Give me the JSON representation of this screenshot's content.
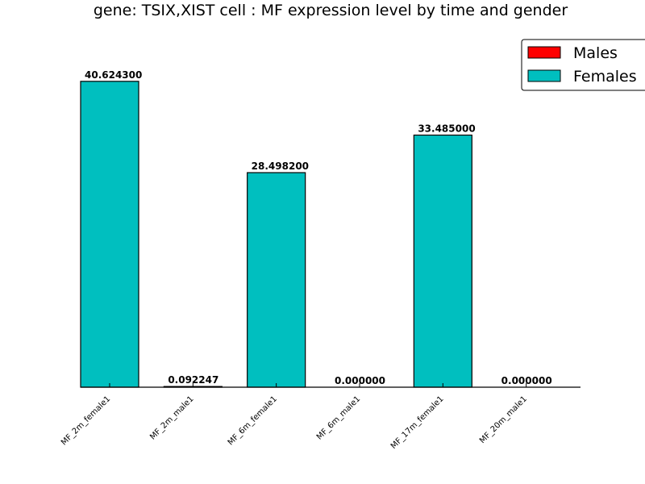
{
  "chart_data": {
    "type": "bar",
    "title": "gene: TSIX,XIST cell : MF expression level by time and gender",
    "xlabel": "",
    "ylabel": "",
    "ylim": [
      0,
      45
    ],
    "grid": false,
    "legend_position": "top-right",
    "categories": [
      "MF_2m_female1",
      "MF_2m_male1",
      "MF_6m_female1",
      "MF_6m_male1",
      "MF_17m_female1",
      "MF_20m_male1"
    ],
    "series": [
      {
        "name": "Males",
        "color": "#ff0000"
      },
      {
        "name": "Females",
        "color": "#00bfbf"
      }
    ],
    "bars": [
      {
        "category": "MF_2m_female1",
        "value": 40.6243,
        "label": "40.624300",
        "series": "Females"
      },
      {
        "category": "MF_2m_male1",
        "value": 0.092247,
        "label": "0.092247",
        "series": "Males"
      },
      {
        "category": "MF_6m_female1",
        "value": 28.4982,
        "label": "28.498200",
        "series": "Females"
      },
      {
        "category": "MF_6m_male1",
        "value": 0.0,
        "label": "0.000000",
        "series": "Males"
      },
      {
        "category": "MF_17m_female1",
        "value": 33.485,
        "label": "33.485000",
        "series": "Females"
      },
      {
        "category": "MF_20m_male1",
        "value": 0.0,
        "label": "0.000000",
        "series": "Males"
      }
    ]
  }
}
